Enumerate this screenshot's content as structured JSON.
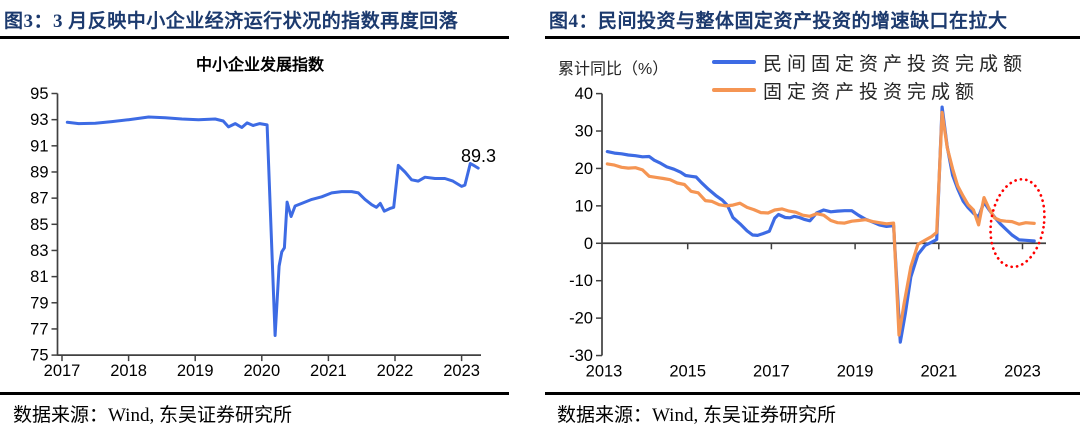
{
  "theme": {
    "title_color": "#1C3A6E",
    "axis_color": "#404040",
    "text_color": "#000000",
    "background": "#FFFFFF",
    "blue_line": "#3D6BE4",
    "orange_line": "#F59553",
    "highlight_red": "#FF0000"
  },
  "panels": [
    {
      "fig_title": "图3：3 月反映中小企业经济运行状况的指数再度回落",
      "source": "数据来源：Wind, 东吴证券研究所"
    },
    {
      "fig_title": "图4：民间投资与整体固定资产投资的增速缺口在拉大",
      "source": "数据来源：Wind, 东吴证券研究所"
    }
  ],
  "chart_data": [
    {
      "type": "line",
      "title": "中小企业发展指数",
      "xlabel": "",
      "ylabel": "",
      "xlim": [
        2016.85,
        2023.45
      ],
      "ylim": [
        75,
        95
      ],
      "x_axis_at": 75,
      "grid": false,
      "x_ticks": [
        2017,
        2018,
        2019,
        2020,
        2021,
        2022,
        2023
      ],
      "y_ticks": [
        95,
        93,
        91,
        89,
        87,
        85,
        83,
        81,
        79,
        77,
        75
      ],
      "annotation": {
        "text": "89.3",
        "x": 2023.1,
        "y": 89.3
      },
      "series": [
        {
          "name": "中小企业发展指数",
          "color": "#3D6BE4",
          "points": [
            [
              2017.08,
              92.8
            ],
            [
              2017.25,
              92.7
            ],
            [
              2017.5,
              92.72
            ],
            [
              2017.75,
              92.85
            ],
            [
              2018.0,
              93.0
            ],
            [
              2018.3,
              93.2
            ],
            [
              2018.55,
              93.15
            ],
            [
              2018.8,
              93.05
            ],
            [
              2019.05,
              93.0
            ],
            [
              2019.3,
              93.05
            ],
            [
              2019.42,
              92.9
            ],
            [
              2019.5,
              92.45
            ],
            [
              2019.6,
              92.7
            ],
            [
              2019.7,
              92.4
            ],
            [
              2019.78,
              92.75
            ],
            [
              2019.87,
              92.55
            ],
            [
              2019.97,
              92.7
            ],
            [
              2020.08,
              92.6
            ],
            [
              2020.2,
              76.5
            ],
            [
              2020.26,
              81.8
            ],
            [
              2020.3,
              82.9
            ],
            [
              2020.34,
              83.2
            ],
            [
              2020.38,
              86.7
            ],
            [
              2020.44,
              85.6
            ],
            [
              2020.5,
              86.4
            ],
            [
              2020.6,
              86.6
            ],
            [
              2020.75,
              86.9
            ],
            [
              2020.9,
              87.1
            ],
            [
              2021.05,
              87.4
            ],
            [
              2021.2,
              87.5
            ],
            [
              2021.35,
              87.5
            ],
            [
              2021.45,
              87.4
            ],
            [
              2021.55,
              86.9
            ],
            [
              2021.65,
              86.5
            ],
            [
              2021.72,
              86.3
            ],
            [
              2021.78,
              86.6
            ],
            [
              2021.84,
              86.0
            ],
            [
              2021.92,
              86.2
            ],
            [
              2021.98,
              86.3
            ],
            [
              2022.05,
              89.5
            ],
            [
              2022.15,
              89.0
            ],
            [
              2022.25,
              88.4
            ],
            [
              2022.35,
              88.3
            ],
            [
              2022.45,
              88.6
            ],
            [
              2022.6,
              88.5
            ],
            [
              2022.75,
              88.5
            ],
            [
              2022.87,
              88.3
            ],
            [
              2023.0,
              87.9
            ],
            [
              2023.05,
              88.0
            ],
            [
              2023.13,
              89.65
            ],
            [
              2023.2,
              89.45
            ],
            [
              2023.25,
              89.3
            ]
          ]
        }
      ]
    },
    {
      "type": "line",
      "title": "",
      "xlabel": "",
      "ylabel": "累计同比（%）",
      "xlim": [
        2012.95,
        2023.55
      ],
      "ylim": [
        -30,
        40
      ],
      "x_axis_at": 0,
      "grid": false,
      "legend_position": "top-right",
      "x_ticks": [
        2013,
        2015,
        2017,
        2019,
        2021,
        2023
      ],
      "y_ticks": [
        40,
        30,
        20,
        10,
        0,
        -10,
        -20,
        -30
      ],
      "highlight_ellipse": {
        "x": 2022.88,
        "y": 5.4,
        "rx_years": 0.63,
        "ry_units": 11.8,
        "rotate_deg": 9,
        "color": "#FF0000"
      },
      "series": [
        {
          "name": "民间固定资产投资完成额",
          "color": "#3D6BE4",
          "points": [
            [
              2013.08,
              24.5
            ],
            [
              2013.25,
              24.1
            ],
            [
              2013.42,
              23.9
            ],
            [
              2013.58,
              23.6
            ],
            [
              2013.75,
              23.4
            ],
            [
              2013.92,
              23.1
            ],
            [
              2014.08,
              23.2
            ],
            [
              2014.2,
              22.2
            ],
            [
              2014.33,
              21.5
            ],
            [
              2014.5,
              20.4
            ],
            [
              2014.67,
              19.8
            ],
            [
              2014.83,
              19.0
            ],
            [
              2014.95,
              18.1
            ],
            [
              2015.08,
              17.9
            ],
            [
              2015.2,
              17.7
            ],
            [
              2015.33,
              16.2
            ],
            [
              2015.5,
              14.4
            ],
            [
              2015.67,
              12.8
            ],
            [
              2015.83,
              11.5
            ],
            [
              2015.95,
              10.1
            ],
            [
              2016.08,
              6.9
            ],
            [
              2016.25,
              5.2
            ],
            [
              2016.42,
              3.3
            ],
            [
              2016.55,
              2.2
            ],
            [
              2016.67,
              2.1
            ],
            [
              2016.8,
              2.6
            ],
            [
              2016.95,
              3.2
            ],
            [
              2017.08,
              6.7
            ],
            [
              2017.17,
              7.7
            ],
            [
              2017.33,
              6.9
            ],
            [
              2017.45,
              6.8
            ],
            [
              2017.55,
              7.2
            ],
            [
              2017.67,
              6.9
            ],
            [
              2017.78,
              6.4
            ],
            [
              2017.92,
              6.0
            ],
            [
              2018.08,
              8.1
            ],
            [
              2018.25,
              8.9
            ],
            [
              2018.42,
              8.4
            ],
            [
              2018.58,
              8.6
            ],
            [
              2018.75,
              8.7
            ],
            [
              2018.92,
              8.7
            ],
            [
              2019.08,
              7.5
            ],
            [
              2019.25,
              6.4
            ],
            [
              2019.42,
              5.7
            ],
            [
              2019.58,
              4.9
            ],
            [
              2019.75,
              4.5
            ],
            [
              2019.92,
              4.7
            ],
            [
              2020.08,
              -26.4
            ],
            [
              2020.2,
              -18.8
            ],
            [
              2020.33,
              -9.0
            ],
            [
              2020.5,
              -3.0
            ],
            [
              2020.67,
              -0.6
            ],
            [
              2020.83,
              0.3
            ],
            [
              2020.95,
              1.0
            ],
            [
              2021.08,
              36.4
            ],
            [
              2021.2,
              25.8
            ],
            [
              2021.33,
              18.2
            ],
            [
              2021.45,
              14.6
            ],
            [
              2021.58,
              11.3
            ],
            [
              2021.7,
              9.5
            ],
            [
              2021.83,
              8.0
            ],
            [
              2021.95,
              7.0
            ],
            [
              2022.08,
              11.0
            ],
            [
              2022.2,
              9.0
            ],
            [
              2022.33,
              7.0
            ],
            [
              2022.47,
              5.2
            ],
            [
              2022.6,
              3.8
            ],
            [
              2022.75,
              2.2
            ],
            [
              2022.92,
              0.9
            ],
            [
              2023.08,
              0.8
            ],
            [
              2023.28,
              0.6
            ]
          ]
        },
        {
          "name": "固定资产投资完成额",
          "color": "#F59553",
          "points": [
            [
              2013.08,
              21.2
            ],
            [
              2013.25,
              20.9
            ],
            [
              2013.42,
              20.3
            ],
            [
              2013.58,
              20.1
            ],
            [
              2013.75,
              20.2
            ],
            [
              2013.92,
              19.6
            ],
            [
              2014.08,
              17.9
            ],
            [
              2014.25,
              17.6
            ],
            [
              2014.42,
              17.3
            ],
            [
              2014.58,
              17.0
            ],
            [
              2014.75,
              16.1
            ],
            [
              2014.92,
              15.7
            ],
            [
              2015.08,
              13.9
            ],
            [
              2015.25,
              13.5
            ],
            [
              2015.42,
              11.4
            ],
            [
              2015.58,
              11.2
            ],
            [
              2015.75,
              10.3
            ],
            [
              2015.92,
              10.0
            ],
            [
              2016.08,
              10.2
            ],
            [
              2016.25,
              10.7
            ],
            [
              2016.42,
              9.6
            ],
            [
              2016.58,
              9.0
            ],
            [
              2016.75,
              8.2
            ],
            [
              2016.92,
              8.1
            ],
            [
              2017.08,
              8.9
            ],
            [
              2017.25,
              9.2
            ],
            [
              2017.42,
              8.6
            ],
            [
              2017.58,
              8.3
            ],
            [
              2017.75,
              7.5
            ],
            [
              2017.92,
              7.2
            ],
            [
              2018.08,
              7.9
            ],
            [
              2018.25,
              7.5
            ],
            [
              2018.42,
              6.1
            ],
            [
              2018.58,
              5.5
            ],
            [
              2018.75,
              5.4
            ],
            [
              2018.92,
              5.9
            ],
            [
              2019.08,
              6.1
            ],
            [
              2019.25,
              6.3
            ],
            [
              2019.42,
              5.8
            ],
            [
              2019.58,
              5.5
            ],
            [
              2019.75,
              5.2
            ],
            [
              2019.92,
              5.4
            ],
            [
              2020.05,
              -24.5
            ],
            [
              2020.17,
              -16.1
            ],
            [
              2020.33,
              -6.3
            ],
            [
              2020.5,
              -0.3
            ],
            [
              2020.67,
              0.8
            ],
            [
              2020.83,
              1.8
            ],
            [
              2020.95,
              2.9
            ],
            [
              2021.08,
              35.0
            ],
            [
              2021.2,
              25.6
            ],
            [
              2021.33,
              19.9
            ],
            [
              2021.45,
              15.4
            ],
            [
              2021.58,
              12.6
            ],
            [
              2021.7,
              10.3
            ],
            [
              2021.83,
              8.9
            ],
            [
              2021.95,
              4.9
            ],
            [
              2022.08,
              12.2
            ],
            [
              2022.2,
              9.3
            ],
            [
              2022.33,
              6.8
            ],
            [
              2022.47,
              6.1
            ],
            [
              2022.6,
              5.9
            ],
            [
              2022.75,
              5.8
            ],
            [
              2022.92,
              5.1
            ],
            [
              2023.08,
              5.5
            ],
            [
              2023.28,
              5.3
            ]
          ]
        }
      ]
    }
  ]
}
